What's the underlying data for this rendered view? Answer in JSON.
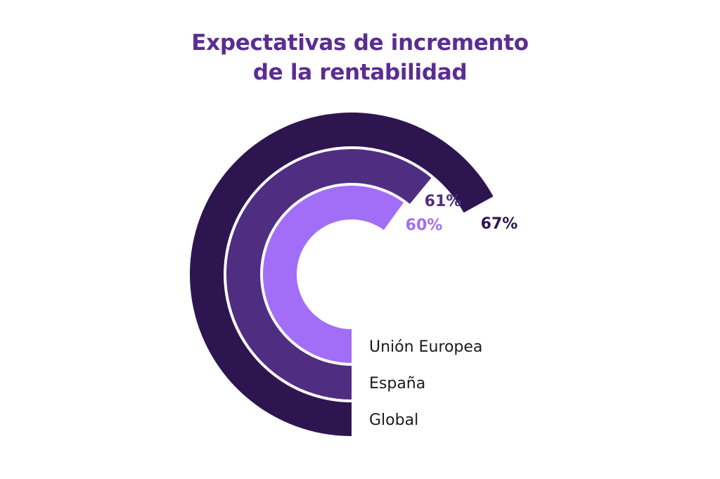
{
  "title": {
    "line1": "Expectativas de incremento",
    "line2": "de la rentabilidad"
  },
  "colors": {
    "title": "#5b2d91",
    "global": "#2d1650",
    "espana": "#4f2d80",
    "union_europea": "#a26ef7",
    "category_text": "#1a1a1a"
  },
  "chart_data": {
    "type": "radial-bar",
    "title": "Expectativas de incremento de la rentabilidad",
    "unit": "%",
    "series": [
      {
        "category": "Global",
        "value": 67,
        "label": "67%",
        "color": "#2d1650"
      },
      {
        "category": "España",
        "value": 61,
        "label": "61%",
        "color": "#4f2d80"
      },
      {
        "category": "Unión Europea",
        "value": 60,
        "label": "60%",
        "color": "#a26ef7"
      }
    ]
  }
}
